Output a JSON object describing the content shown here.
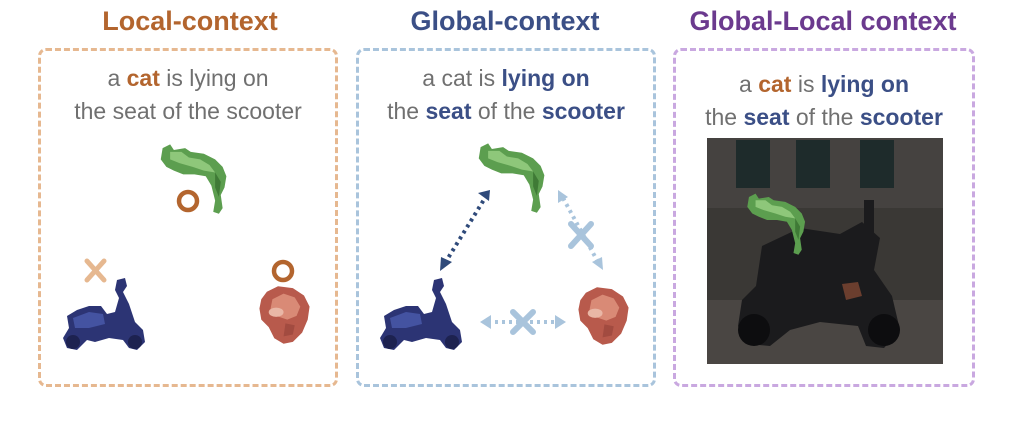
{
  "colors": {
    "local": "#b3652e",
    "global": "#3b4f86",
    "globallocal": "#6b3a8e",
    "local_border": "#e6b890",
    "global_border": "#a9c4dc",
    "globallocal_border": "#c9a8e0",
    "caption_gray": "#707070",
    "arrow_strong": "#2f4a7a",
    "arrow_weak": "#a9c4dc"
  },
  "panels": [
    {
      "heading": "Local-context",
      "caption": {
        "line1": [
          "a ",
          "cat",
          " is lying on"
        ],
        "line2": [
          "the seat of the scooter"
        ]
      },
      "marks": {
        "cat_mark": "O",
        "scooter_mark": "✕",
        "dog_mark": "O"
      },
      "icons": [
        "cat-icon",
        "scooter-icon",
        "dog-icon"
      ]
    },
    {
      "heading": "Global-context",
      "caption": {
        "line1": [
          "a cat is ",
          "lying on"
        ],
        "line2": [
          "the ",
          "seat",
          " of the ",
          "scooter"
        ]
      },
      "icons": [
        "cat-icon",
        "scooter-icon",
        "dog-icon",
        "bidirectional-arrow-icon",
        "cross-icon"
      ]
    },
    {
      "heading": "Global-Local context",
      "caption": {
        "line1": [
          "a ",
          "cat",
          " is ",
          "lying on"
        ],
        "line2": [
          "the ",
          "seat",
          " of the ",
          "scooter"
        ]
      },
      "icons": [
        "cat-icon",
        "scooter-icon",
        "photo-icon"
      ]
    }
  ]
}
